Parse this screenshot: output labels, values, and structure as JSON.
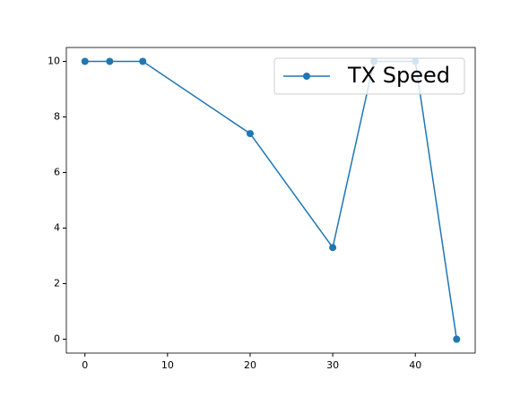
{
  "chart_data": {
    "type": "line",
    "x": [
      0,
      3,
      7,
      20,
      30,
      35,
      40,
      45
    ],
    "series": [
      {
        "name": "TX Speed",
        "color": "#1f77b4",
        "values": [
          10,
          10,
          10,
          7.4,
          3.3,
          10,
          10,
          0
        ]
      }
    ],
    "xlim": [
      -2.25,
      47.25
    ],
    "xticks": [
      0,
      10,
      20,
      30,
      40
    ],
    "ylim": [
      -0.5,
      10.5
    ],
    "yticks": [
      0,
      2,
      4,
      6,
      8,
      10
    ],
    "grid": false,
    "legend": "upper right"
  }
}
